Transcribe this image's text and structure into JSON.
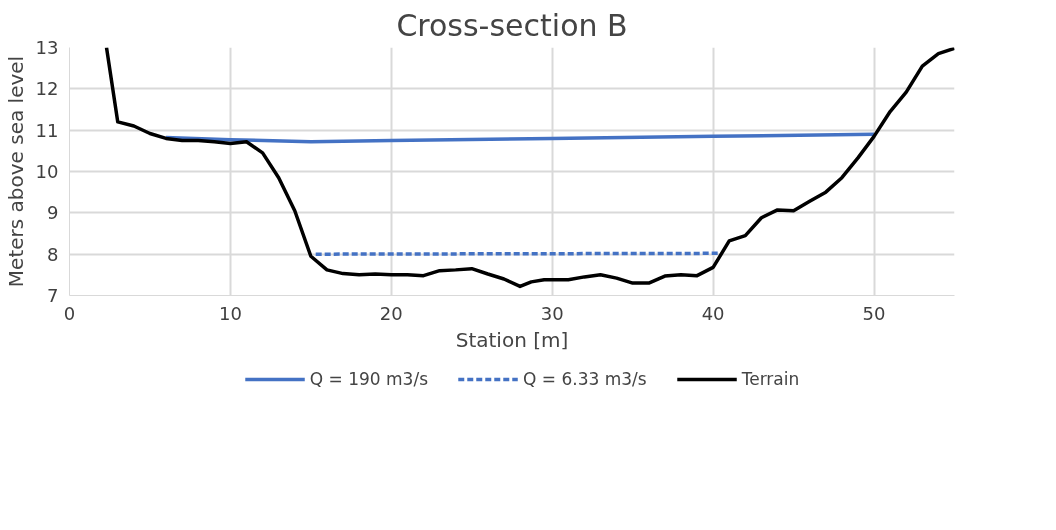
{
  "chart_data": {
    "type": "line",
    "title": "Cross-section B",
    "xlabel": "Station [m]",
    "ylabel": "Meters above sea level",
    "xlim": [
      0,
      55
    ],
    "ylim": [
      7,
      13
    ],
    "xticks": [
      0,
      10,
      20,
      30,
      40,
      50
    ],
    "yticks": [
      7,
      8,
      9,
      10,
      11,
      12,
      13
    ],
    "grid": true,
    "legend": "bottom",
    "marker": "none",
    "series": [
      {
        "name": "Q = 190 m3/s",
        "color": "#4472c4",
        "line_style": "solid",
        "x": [
          6,
          10,
          15,
          20,
          30,
          40,
          50
        ],
        "values": [
          10.82,
          10.77,
          10.72,
          10.75,
          10.8,
          10.85,
          10.9
        ]
      },
      {
        "name": "Q = 6.33 m3/s",
        "color": "#4472c4",
        "line_style": "dashed",
        "x": [
          15.3,
          40.3
        ],
        "values": [
          8.0,
          8.02
        ]
      },
      {
        "name": "Terrain",
        "color": "#000000",
        "line_style": "solid",
        "x": [
          2.3,
          3,
          4,
          5,
          6,
          7,
          8,
          9,
          10,
          11,
          12,
          13,
          14,
          15,
          16,
          17,
          18,
          19,
          20,
          21,
          22,
          23,
          24,
          25,
          26,
          27,
          28,
          28.7,
          29.5,
          31,
          32,
          33,
          34,
          35,
          36,
          37,
          38,
          39,
          40,
          41,
          42,
          43,
          44,
          45,
          46,
          47,
          48,
          49,
          50,
          51,
          52,
          53,
          54,
          55
        ],
        "values": [
          13,
          11.2,
          11.1,
          10.92,
          10.8,
          10.75,
          10.75,
          10.72,
          10.68,
          10.72,
          10.45,
          9.85,
          9.05,
          7.95,
          7.62,
          7.53,
          7.5,
          7.52,
          7.5,
          7.5,
          7.48,
          7.6,
          7.62,
          7.65,
          7.52,
          7.4,
          7.22,
          7.33,
          7.38,
          7.38,
          7.45,
          7.5,
          7.42,
          7.3,
          7.3,
          7.47,
          7.5,
          7.48,
          7.68,
          8.32,
          8.45,
          8.88,
          9.07,
          9.05,
          9.28,
          9.5,
          9.85,
          10.33,
          10.85,
          11.45,
          11.92,
          12.55,
          12.85,
          12.98
        ]
      }
    ]
  }
}
